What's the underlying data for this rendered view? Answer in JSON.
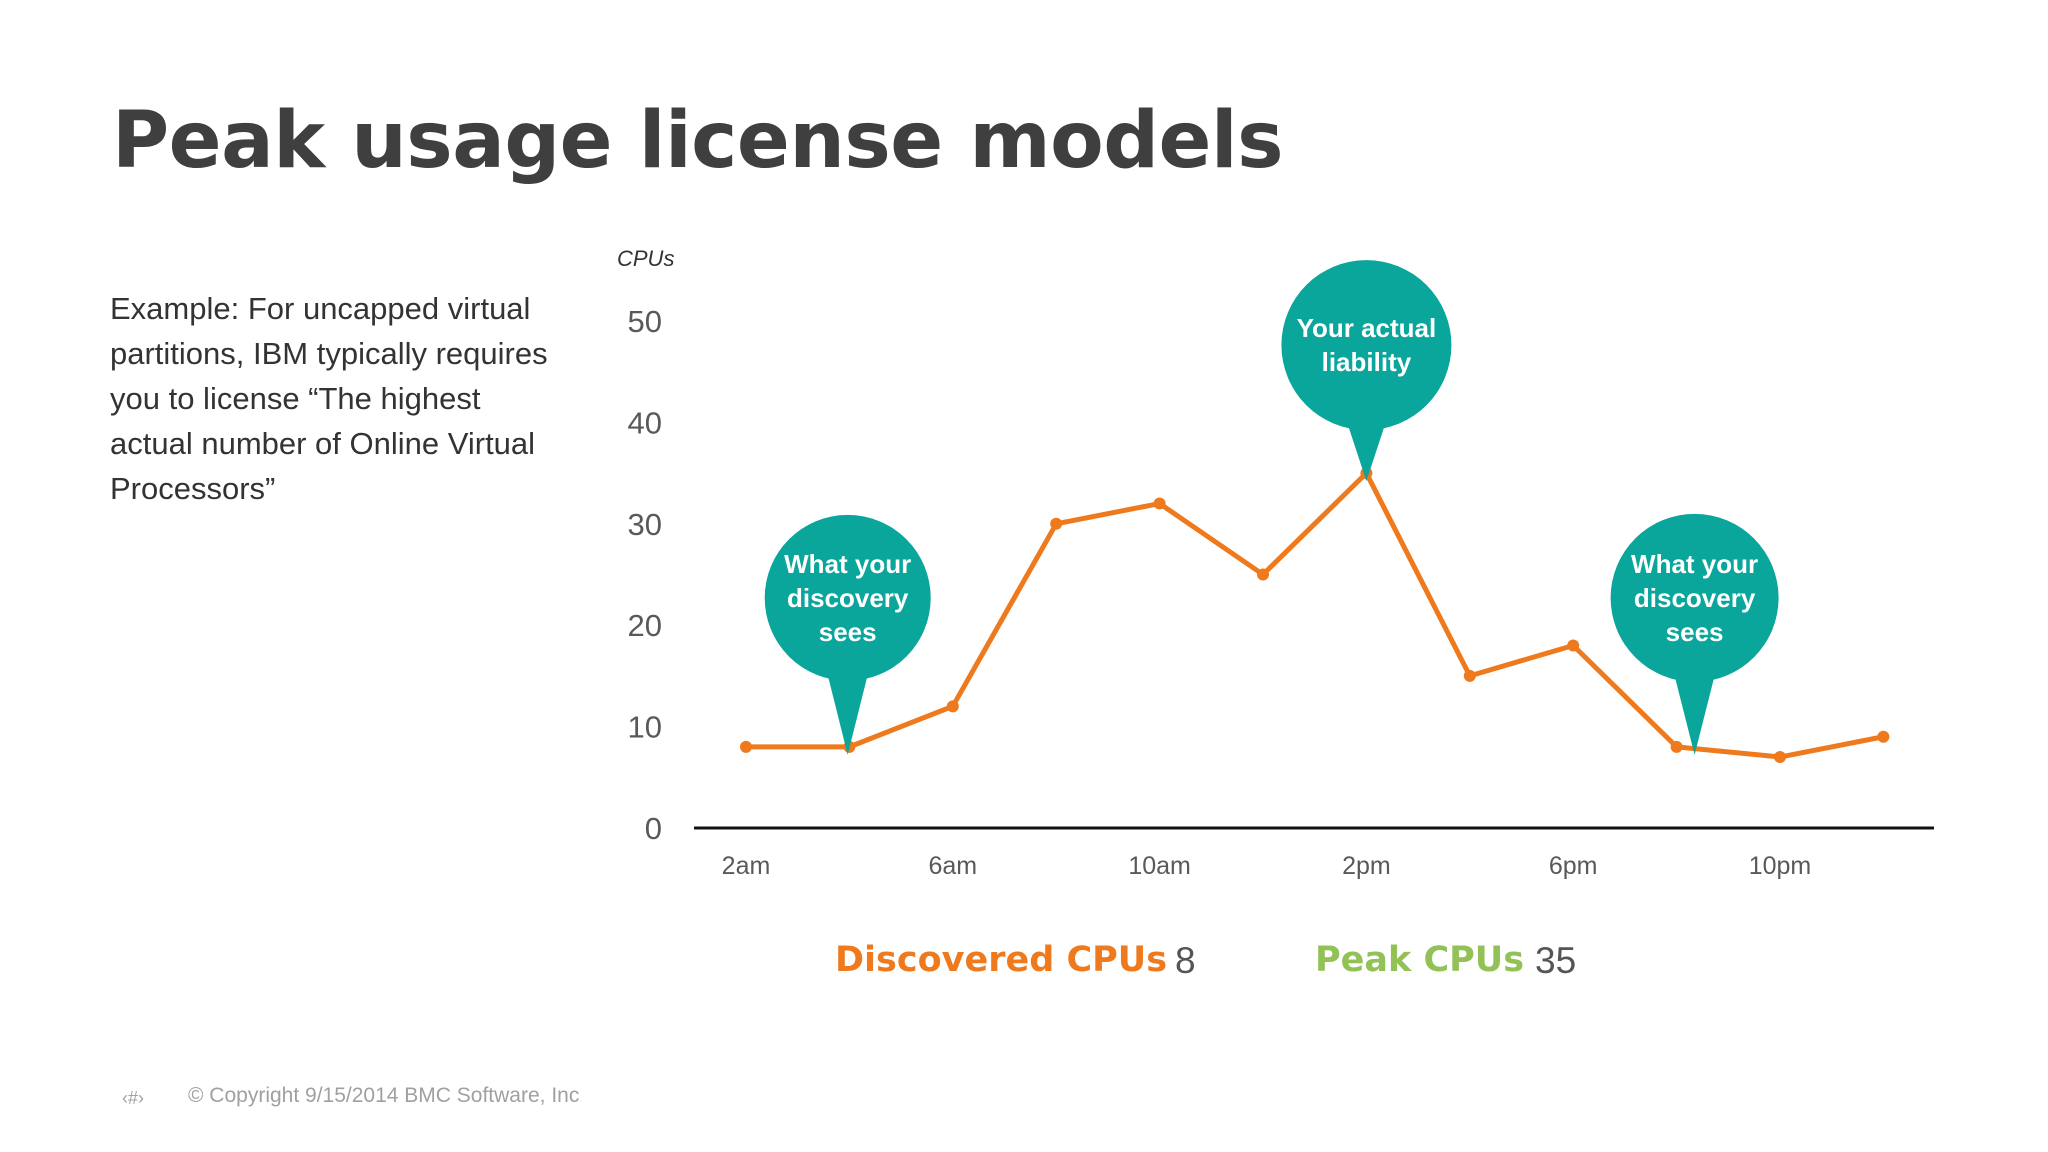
{
  "slide": {
    "title": "Peak usage license models",
    "body_text": "Example: For uncapped virtual partitions, IBM typically requires you to license “The highest actual number of Online Virtual Processors”"
  },
  "colors": {
    "line": "#ee7a1d",
    "callout": "#0aa59b",
    "title": "#3f3f3f",
    "discovered_label": "#ee7a1d",
    "peak_label": "#92c156"
  },
  "chart_data": {
    "type": "line",
    "title": "",
    "ylabel": "CPUs",
    "xlabel": "",
    "ylim": [
      0,
      50
    ],
    "yticks": [
      "0",
      "10",
      "20",
      "30",
      "40",
      "50"
    ],
    "x_tick_labels": [
      "2am",
      "6am",
      "10am",
      "2pm",
      "6pm",
      "10pm"
    ],
    "x": [
      "2am",
      "4am",
      "6am",
      "8am",
      "10am",
      "12pm",
      "2pm",
      "4pm",
      "6pm",
      "8pm",
      "10pm",
      "12am"
    ],
    "series": [
      {
        "values": [
          8,
          8,
          12,
          30,
          32,
          25,
          35,
          15,
          18,
          8,
          7,
          9
        ]
      }
    ],
    "grid": false,
    "annotations": [
      {
        "text": "What your discovery sees",
        "x": "4am",
        "y": 8
      },
      {
        "text": "Your actual liability",
        "x": "2pm",
        "y": 35
      },
      {
        "text": "What your discovery sees",
        "x": "8pm",
        "y": 8
      }
    ]
  },
  "summary": {
    "discovered_label": "Discovered CPUs",
    "discovered_value": "8",
    "peak_label": "Peak CPUs",
    "peak_value": "35"
  },
  "footer": {
    "slide_number": "‹#›",
    "copyright": "© Copyright 9/15/2014 BMC Software, Inc"
  }
}
